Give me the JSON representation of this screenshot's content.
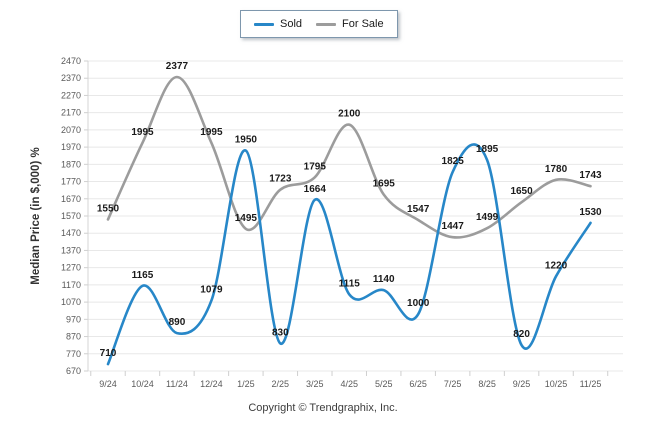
{
  "legend": {
    "items": [
      {
        "label": "Sold",
        "color": "#2787C8"
      },
      {
        "label": "For Sale",
        "color": "#9C9C9C"
      }
    ]
  },
  "chart_data": {
    "type": "line",
    "title": "",
    "ylabel": "Median Price (in $,000) %",
    "xlabel": "",
    "ylim": [
      670,
      2470
    ],
    "ytick_step": 100,
    "yticks": [
      2470,
      2370,
      2270,
      2170,
      2070,
      1970,
      1870,
      1770,
      1670,
      1570,
      1470,
      1370,
      1270,
      1170,
      1070,
      970,
      870,
      770,
      670
    ],
    "grid": true,
    "legend_position": "top-center",
    "categories": [
      "9/24",
      "10/24",
      "11/24",
      "12/24",
      "1/25",
      "2/25",
      "3/25",
      "4/25",
      "5/25",
      "6/25",
      "7/25",
      "8/25",
      "9/25",
      "10/25",
      "11/25"
    ],
    "series": [
      {
        "name": "Sold",
        "color": "#2787C8",
        "values": [
          710,
          1165,
          890,
          1079,
          1950,
          830,
          1664,
          1115,
          1140,
          1000,
          1825,
          1895,
          820,
          1220,
          1530
        ]
      },
      {
        "name": "For Sale",
        "color": "#9C9C9C",
        "values": [
          1550,
          1995,
          2377,
          1995,
          1495,
          1723,
          1795,
          2100,
          1695,
          1547,
          1447,
          1499,
          1650,
          1780,
          1743
        ]
      }
    ]
  },
  "footer": {
    "text": "Copyright © Trendgraphix, Inc."
  }
}
